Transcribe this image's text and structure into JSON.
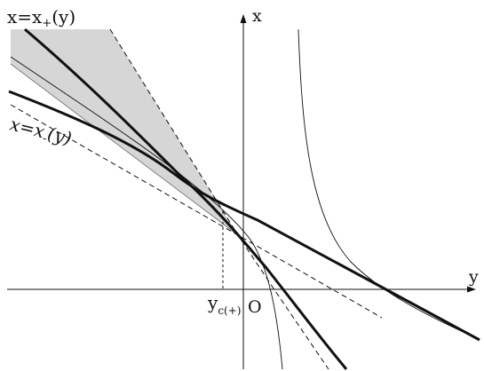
{
  "labels": {
    "x_axis": "x",
    "y_axis": "y",
    "origin": "O",
    "x_plus_main": "x=x",
    "x_plus_sub": "+",
    "x_plus_arg": "(y)",
    "x_minus_main": "x=x",
    "x_minus_sub": "-",
    "x_minus_arg": "(y)",
    "yc_main": "y",
    "yc_sub": "c(+)"
  },
  "colors": {
    "ink": "#111111",
    "shade": "#d6d6d6"
  }
}
